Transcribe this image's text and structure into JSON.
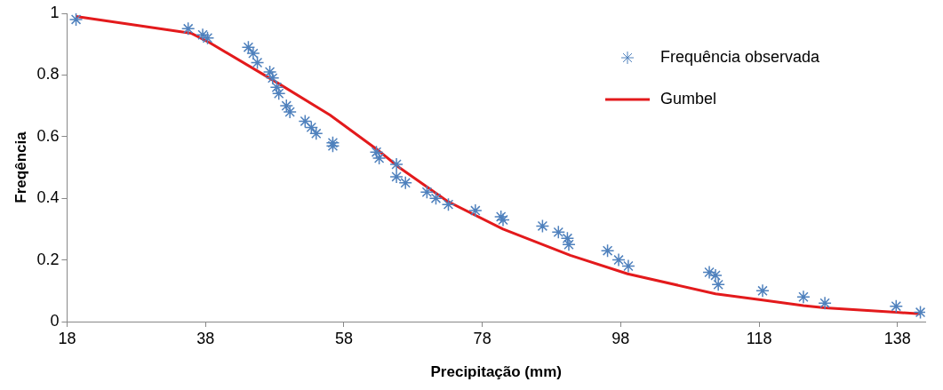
{
  "chart_data": {
    "type": "scatter",
    "xlabel": "Precipitação (mm)",
    "ylabel": "Freqência",
    "xlim": [
      18,
      142
    ],
    "xticks": [
      18,
      38,
      58,
      78,
      98,
      118,
      138
    ],
    "ylim": [
      0,
      1
    ],
    "yticks": [
      0,
      0.2,
      0.4,
      0.6,
      0.8,
      1
    ],
    "grid": false,
    "legend": "top right",
    "series": [
      {
        "name": "Frequência observada",
        "marker": "cross",
        "color": "#4f81bd",
        "x": [
          19.3,
          35.5,
          37.6,
          38.3,
          44.2,
          44.9,
          45.5,
          47.3,
          47.7,
          48.3,
          48.6,
          49.7,
          50.2,
          52.4,
          53.3,
          54,
          56.4,
          56.4,
          62.7,
          63.1,
          65.6,
          65.6,
          66.9,
          70,
          71.3,
          73.1,
          77,
          80.7,
          81,
          86.7,
          89,
          90.3,
          90.5,
          96.1,
          97.7,
          99.1,
          110.8,
          111.7,
          112.1,
          118.5,
          124.4,
          127.5,
          137.8,
          141.3
        ],
        "values": [
          0.98,
          0.95,
          0.93,
          0.92,
          0.89,
          0.87,
          0.84,
          0.81,
          0.79,
          0.76,
          0.74,
          0.7,
          0.68,
          0.65,
          0.63,
          0.61,
          0.58,
          0.57,
          0.55,
          0.53,
          0.51,
          0.47,
          0.45,
          0.42,
          0.4,
          0.38,
          0.36,
          0.34,
          0.33,
          0.31,
          0.29,
          0.27,
          0.25,
          0.23,
          0.2,
          0.18,
          0.16,
          0.15,
          0.12,
          0.1,
          0.08,
          0.06,
          0.05,
          0.03
        ]
      },
      {
        "name": "Gumbel",
        "type": "line",
        "color": "#e31a1c",
        "x": [
          19.3,
          36,
          38.6,
          48,
          56,
          62.7,
          66,
          73,
          81,
          90.7,
          99,
          111.7,
          118.5,
          124.4,
          127.5,
          137.8,
          141.3
        ],
        "values": [
          0.99,
          0.935,
          0.905,
          0.78,
          0.67,
          0.56,
          0.5,
          0.39,
          0.3,
          0.215,
          0.155,
          0.09,
          0.07,
          0.052,
          0.045,
          0.03,
          0.025
        ]
      }
    ]
  }
}
